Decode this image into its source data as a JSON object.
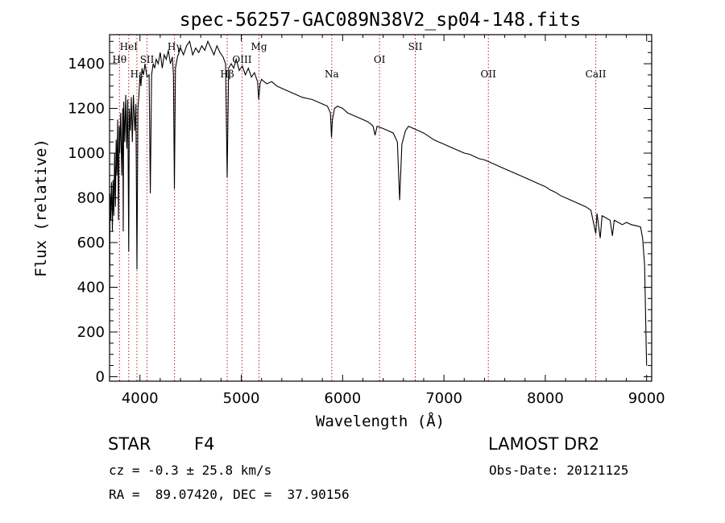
{
  "chart_data": {
    "type": "line",
    "title": "spec-56257-GAC089N38V2_sp04-148.fits",
    "xlabel": "Wavelength (Å)",
    "ylabel": "Flux (relative)",
    "xlim": [
      3700,
      9050
    ],
    "ylim": [
      -20,
      1530
    ],
    "xticks": [
      4000,
      5000,
      6000,
      7000,
      8000,
      9000
    ],
    "yticks": [
      0,
      200,
      400,
      600,
      800,
      1000,
      1200,
      1400
    ],
    "grid": false,
    "series": [
      {
        "points": [
          [
            3700,
            150
          ],
          [
            3705,
            820
          ],
          [
            3710,
            700
          ],
          [
            3720,
            870
          ],
          [
            3728,
            650
          ],
          [
            3735,
            880
          ],
          [
            3742,
            720
          ],
          [
            3750,
            1000
          ],
          [
            3758,
            760
          ],
          [
            3765,
            1060
          ],
          [
            3772,
            900
          ],
          [
            3780,
            1150
          ],
          [
            3788,
            700
          ],
          [
            3795,
            1120
          ],
          [
            3800,
            1000
          ],
          [
            3810,
            1180
          ],
          [
            3820,
            900
          ],
          [
            3830,
            1200
          ],
          [
            3835,
            650
          ],
          [
            3840,
            1230
          ],
          [
            3850,
            1050
          ],
          [
            3860,
            1260
          ],
          [
            3870,
            1020
          ],
          [
            3880,
            1240
          ],
          [
            3889,
            560
          ],
          [
            3895,
            1200
          ],
          [
            3905,
            1100
          ],
          [
            3915,
            1250
          ],
          [
            3925,
            1050
          ],
          [
            3935,
            1260
          ],
          [
            3950,
            1100
          ],
          [
            3960,
            1220
          ],
          [
            3970,
            480
          ],
          [
            3980,
            1200
          ],
          [
            3990,
            1260
          ],
          [
            4000,
            1350
          ],
          [
            4010,
            1300
          ],
          [
            4020,
            1380
          ],
          [
            4035,
            1350
          ],
          [
            4050,
            1400
          ],
          [
            4070,
            1340
          ],
          [
            4090,
            1350
          ],
          [
            4102,
            820
          ],
          [
            4115,
            1350
          ],
          [
            4130,
            1400
          ],
          [
            4145,
            1380
          ],
          [
            4160,
            1420
          ],
          [
            4180,
            1400
          ],
          [
            4200,
            1450
          ],
          [
            4220,
            1380
          ],
          [
            4240,
            1440
          ],
          [
            4260,
            1420
          ],
          [
            4280,
            1460
          ],
          [
            4300,
            1400
          ],
          [
            4320,
            1430
          ],
          [
            4330,
            1350
          ],
          [
            4340,
            840
          ],
          [
            4350,
            1380
          ],
          [
            4370,
            1430
          ],
          [
            4400,
            1470
          ],
          [
            4430,
            1440
          ],
          [
            4460,
            1480
          ],
          [
            4490,
            1500
          ],
          [
            4520,
            1440
          ],
          [
            4550,
            1470
          ],
          [
            4580,
            1450
          ],
          [
            4610,
            1480
          ],
          [
            4640,
            1460
          ],
          [
            4670,
            1500
          ],
          [
            4700,
            1470
          ],
          [
            4730,
            1440
          ],
          [
            4760,
            1480
          ],
          [
            4790,
            1450
          ],
          [
            4820,
            1430
          ],
          [
            4845,
            1400
          ],
          [
            4861,
            890
          ],
          [
            4875,
            1380
          ],
          [
            4900,
            1400
          ],
          [
            4925,
            1380
          ],
          [
            4950,
            1420
          ],
          [
            4980,
            1370
          ],
          [
            5010,
            1390
          ],
          [
            5040,
            1350
          ],
          [
            5070,
            1380
          ],
          [
            5100,
            1340
          ],
          [
            5130,
            1360
          ],
          [
            5160,
            1320
          ],
          [
            5172,
            1240
          ],
          [
            5185,
            1310
          ],
          [
            5200,
            1330
          ],
          [
            5250,
            1310
          ],
          [
            5300,
            1320
          ],
          [
            5350,
            1300
          ],
          [
            5400,
            1290
          ],
          [
            5450,
            1280
          ],
          [
            5500,
            1270
          ],
          [
            5550,
            1260
          ],
          [
            5600,
            1250
          ],
          [
            5650,
            1245
          ],
          [
            5700,
            1240
          ],
          [
            5750,
            1230
          ],
          [
            5800,
            1220
          ],
          [
            5850,
            1210
          ],
          [
            5880,
            1180
          ],
          [
            5890,
            1070
          ],
          [
            5900,
            1150
          ],
          [
            5920,
            1200
          ],
          [
            5950,
            1210
          ],
          [
            6000,
            1200
          ],
          [
            6050,
            1180
          ],
          [
            6100,
            1170
          ],
          [
            6150,
            1160
          ],
          [
            6200,
            1150
          ],
          [
            6250,
            1140
          ],
          [
            6280,
            1130
          ],
          [
            6300,
            1120
          ],
          [
            6320,
            1080
          ],
          [
            6340,
            1120
          ],
          [
            6400,
            1110
          ],
          [
            6450,
            1100
          ],
          [
            6500,
            1090
          ],
          [
            6540,
            1050
          ],
          [
            6563,
            790
          ],
          [
            6585,
            1040
          ],
          [
            6620,
            1100
          ],
          [
            6650,
            1120
          ],
          [
            6700,
            1110
          ],
          [
            6750,
            1100
          ],
          [
            6800,
            1090
          ],
          [
            6850,
            1075
          ],
          [
            6900,
            1060
          ],
          [
            6950,
            1050
          ],
          [
            7000,
            1040
          ],
          [
            7050,
            1030
          ],
          [
            7100,
            1020
          ],
          [
            7150,
            1010
          ],
          [
            7200,
            1000
          ],
          [
            7250,
            995
          ],
          [
            7300,
            985
          ],
          [
            7350,
            975
          ],
          [
            7400,
            970
          ],
          [
            7450,
            960
          ],
          [
            7500,
            950
          ],
          [
            7550,
            940
          ],
          [
            7600,
            930
          ],
          [
            7650,
            920
          ],
          [
            7700,
            910
          ],
          [
            7750,
            900
          ],
          [
            7800,
            890
          ],
          [
            7850,
            880
          ],
          [
            7900,
            870
          ],
          [
            7950,
            860
          ],
          [
            8000,
            850
          ],
          [
            8050,
            835
          ],
          [
            8100,
            825
          ],
          [
            8150,
            810
          ],
          [
            8200,
            800
          ],
          [
            8250,
            790
          ],
          [
            8300,
            780
          ],
          [
            8350,
            770
          ],
          [
            8400,
            760
          ],
          [
            8450,
            745
          ],
          [
            8498,
            640
          ],
          [
            8510,
            730
          ],
          [
            8542,
            620
          ],
          [
            8560,
            720
          ],
          [
            8600,
            710
          ],
          [
            8640,
            700
          ],
          [
            8662,
            630
          ],
          [
            8680,
            700
          ],
          [
            8720,
            690
          ],
          [
            8760,
            680
          ],
          [
            8800,
            690
          ],
          [
            8850,
            680
          ],
          [
            8900,
            675
          ],
          [
            8940,
            670
          ],
          [
            8960,
            620
          ],
          [
            8980,
            500
          ],
          [
            8995,
            150
          ],
          [
            9000,
            50
          ]
        ]
      }
    ],
    "line_markers": [
      {
        "label": "Hθ",
        "x": 3798,
        "row": 2
      },
      {
        "label": "HeI",
        "x": 3889,
        "row": 1
      },
      {
        "label": "Hε",
        "x": 3970,
        "row": 3
      },
      {
        "label": "SII",
        "x": 4070,
        "row": 2
      },
      {
        "label": "Hγ",
        "x": 4341,
        "row": 1
      },
      {
        "label": "Hβ",
        "x": 4861,
        "row": 3
      },
      {
        "label": "OIII",
        "x": 5007,
        "row": 2
      },
      {
        "label": "Mg",
        "x": 5175,
        "row": 1
      },
      {
        "label": "Na",
        "x": 5893,
        "row": 3
      },
      {
        "label": "OI",
        "x": 6364,
        "row": 2
      },
      {
        "label": "SII",
        "x": 6717,
        "row": 1
      },
      {
        "label": "OII",
        "x": 7438,
        "row": 3
      },
      {
        "label": "CaII",
        "x": 8498,
        "row": 3
      }
    ],
    "marker_color": "#b22222",
    "line_color": "#000000"
  },
  "info": {
    "object_type": "STAR",
    "subclass": "F4",
    "redshift": "cz = -0.3 ± 25.8 km/s",
    "coords": "RA =  89.07420, DEC =  37.90156",
    "survey": "LAMOST DR2",
    "obs_date": "Obs-Date: 20121125"
  }
}
